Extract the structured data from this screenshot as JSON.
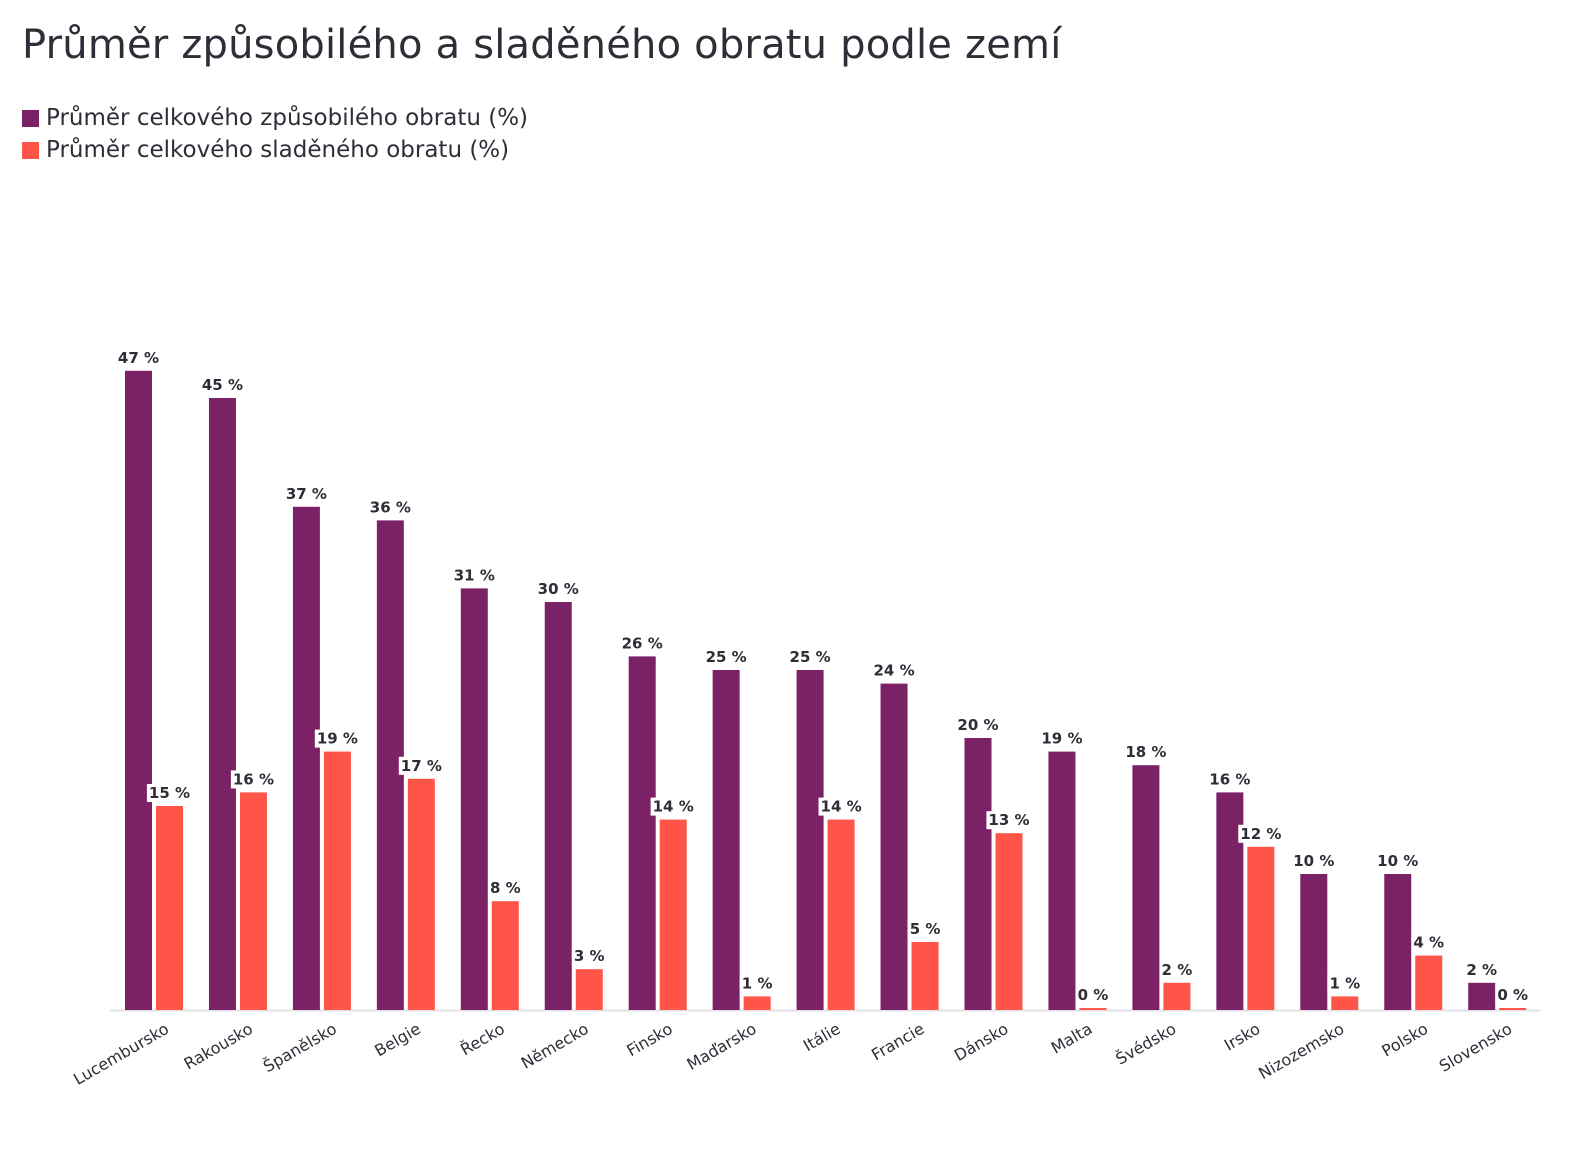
{
  "chart_data": {
    "type": "bar",
    "title": "Průměr způsobilého a sladěného obratu podle zemí",
    "xlabel": "",
    "ylabel": "",
    "ylim": [
      0,
      50
    ],
    "grid": false,
    "legend_position": "top-left",
    "value_suffix": " %",
    "categories": [
      "Lucembursko",
      "Rakousko",
      "Španělsko",
      "Belgie",
      "Řecko",
      "Německo",
      "Finsko",
      "Maďarsko",
      "Itálie",
      "Francie",
      "Dánsko",
      "Malta",
      "Švédsko",
      "Irsko",
      "Nizozemsko",
      "Polsko",
      "Slovensko"
    ],
    "series": [
      {
        "name": "Průměr celkového způsobilého obratu (%)",
        "color": "#7b2266",
        "values": [
          47,
          45,
          37,
          36,
          31,
          30,
          26,
          25,
          25,
          24,
          20,
          19,
          18,
          16,
          10,
          10,
          2
        ]
      },
      {
        "name": "Průměr celkového sladěného obratu (%)",
        "color": "#ff5448",
        "values": [
          15,
          16,
          19,
          17,
          8,
          3,
          14,
          1,
          14,
          5,
          13,
          0,
          2,
          12,
          1,
          4,
          0
        ]
      }
    ]
  }
}
